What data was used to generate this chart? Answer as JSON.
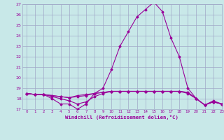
{
  "x": [
    0,
    1,
    2,
    3,
    4,
    5,
    6,
    7,
    8,
    9,
    10,
    11,
    12,
    13,
    14,
    15,
    16,
    17,
    18,
    19,
    20,
    21,
    22,
    23
  ],
  "line1": [
    18.5,
    18.4,
    18.4,
    18.0,
    17.5,
    17.5,
    17.0,
    17.5,
    18.5,
    19.0,
    20.8,
    23.0,
    24.4,
    25.8,
    26.5,
    27.2,
    26.3,
    23.8,
    22.0,
    19.0,
    18.0,
    17.4,
    17.8,
    17.5
  ],
  "line2": [
    18.5,
    18.4,
    18.4,
    18.2,
    18.0,
    17.8,
    17.5,
    17.7,
    18.2,
    18.5,
    18.7,
    18.7,
    18.7,
    18.7,
    18.7,
    18.7,
    18.7,
    18.7,
    18.7,
    18.5,
    18.0,
    17.4,
    17.7,
    17.5
  ],
  "line3": [
    18.5,
    18.4,
    18.4,
    18.3,
    18.2,
    18.1,
    18.3,
    18.4,
    18.5,
    18.6,
    18.7,
    18.7,
    18.7,
    18.7,
    18.7,
    18.7,
    18.7,
    18.7,
    18.7,
    18.6,
    18.0,
    17.4,
    17.7,
    17.5
  ],
  "line4": [
    18.5,
    18.4,
    18.4,
    18.3,
    18.2,
    18.1,
    18.2,
    18.3,
    18.5,
    18.6,
    18.7,
    18.7,
    18.7,
    18.7,
    18.7,
    18.7,
    18.7,
    18.7,
    18.7,
    18.6,
    18.0,
    17.4,
    17.7,
    17.5
  ],
  "line_color": "#990099",
  "bg_color": "#c8e8e8",
  "grid_color": "#a0a8c8",
  "xlabel": "Windchill (Refroidissement éolien,°C)",
  "ylim": [
    17,
    27
  ],
  "xlim": [
    -0.5,
    23
  ],
  "yticks": [
    17,
    18,
    19,
    20,
    21,
    22,
    23,
    24,
    25,
    26,
    27
  ],
  "xticks": [
    0,
    1,
    2,
    3,
    4,
    5,
    6,
    7,
    8,
    9,
    10,
    11,
    12,
    13,
    14,
    15,
    16,
    17,
    18,
    19,
    20,
    21,
    22,
    23
  ]
}
